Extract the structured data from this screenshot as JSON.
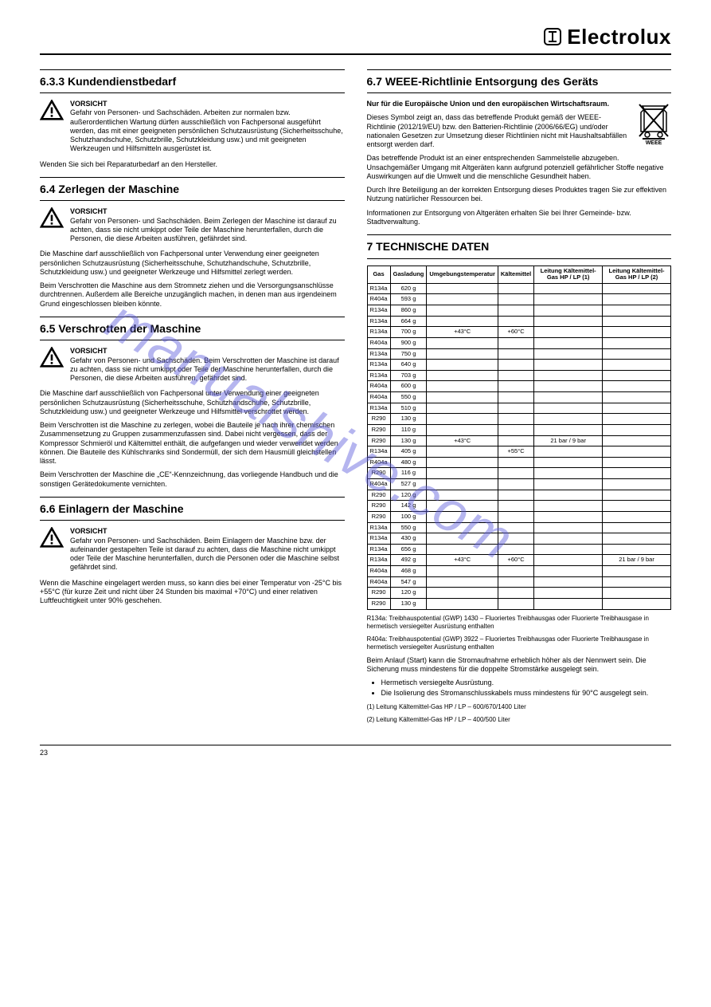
{
  "brand": "Electrolux",
  "watermark": "manualshive.com",
  "footer": "23",
  "sections": {
    "needs": {
      "title": "6.3.3 Kundendienstbedarf",
      "warn_intro": "VORSICHT",
      "warn_body": "Gefahr von Personen- und Sachschäden. Arbeiten zur normalen bzw. außerordentlichen Wartung dürfen ausschließlich von Fachpersonal ausgeführt werden, das mit einer geeigneten persönlichen Schutzausrüstung (Sicherheitsschuhe, Schutzhandschuhe, Schutzbrille, Schutzkleidung usw.) und mit geeigneten Werkzeugen und Hilfsmitteln ausgerüstet ist.",
      "body": "Wenden Sie sich bei Reparaturbedarf an den Hersteller."
    },
    "dismantle": {
      "title": "6.4 Zerlegen der Maschine",
      "warn_intro": "VORSICHT",
      "warn_body": "Gefahr von Personen- und Sachschäden. Beim Zerlegen der Maschine ist darauf zu achten, dass sie nicht umkippt oder Teile der Maschine herunterfallen, durch die Personen, die diese Arbeiten ausführen, gefährdet sind.",
      "body1": "Die Maschine darf ausschließlich von Fachpersonal unter Verwendung einer geeigneten persönlichen Schutzausrüstung (Sicherheitsschuhe, Schutzhandschuhe, Schutzbrille, Schutzkleidung usw.) und geeigneter Werkzeuge und Hilfsmittel zerlegt werden.",
      "body2": "Beim Verschrotten die Maschine aus dem Stromnetz ziehen und die Versorgungsanschlüsse durchtrennen. Außerdem alle Bereiche unzugänglich machen, in denen man aus irgendeinem Grund eingeschlossen bleiben könnte."
    },
    "scrap": {
      "title": "6.5 Verschrotten der Maschine",
      "warn_intro": "VORSICHT",
      "warn_body": "Gefahr von Personen- und Sachschäden. Beim Verschrotten der Maschine ist darauf zu achten, dass sie nicht umkippt oder Teile der Maschine herunterfallen, durch die Personen, die diese Arbeiten ausführen, gefährdet sind.",
      "body1": "Die Maschine darf ausschließlich von Fachpersonal unter Verwendung einer geeigneten persönlichen Schutzausrüstung (Sicherheitsschuhe, Schutzhandschuhe, Schutzbrille, Schutzkleidung usw.) und geeigneter Werkzeuge und Hilfsmittel verschrottet werden.",
      "body2": "Beim Verschrotten ist die Maschine zu zerlegen, wobei die Bauteile je nach ihrer chemischen Zusammensetzung zu Gruppen zusammenzufassen sind. Dabei nicht vergessen, dass der Kompressor Schmieröl und Kältemittel enthält, die aufgefangen und wieder verwendet werden können. Die Bauteile des Kühlschranks sind Sondermüll, der sich dem Hausmüll gleichstellen lässt.",
      "body3": "Beim Verschrotten der Maschine die „CE“-Kennzeichnung, das vorliegende Handbuch und die sonstigen Gerätedokumente vernichten."
    },
    "storage": {
      "title": "6.6 Einlagern der Maschine",
      "warn_intro": "VORSICHT",
      "warn_body": "Gefahr von Personen- und Sachschäden. Beim Einlagern der Maschine bzw. der aufeinander gestapelten Teile ist darauf zu achten, dass die Maschine nicht umkippt oder Teile der Maschine herunterfallen, durch die Personen oder die Maschine selbst gefährdet sind.",
      "body1": "Wenn die Maschine eingelagert werden muss, so kann dies bei einer Temperatur von -25°C bis +55°C (für kurze Zeit und nicht über 24 Stunden bis maximal +70°C) und einer relativen Luftfeuchtigkeit unter 90% geschehen."
    },
    "disposal": {
      "title": "6.7 WEEE-Richtlinie Entsorgung des Geräts",
      "intro_bold": "Nur für die Europäische Union und den europäischen Wirtschaftsraum.",
      "weee_label": "WEEE",
      "body1": "Dieses Symbol zeigt an, dass das betreffende Produkt gemäß der WEEE-Richtlinie (2012/19/EU) bzw. den Batterien-Richtlinie (2006/66/EG) und/oder nationalen Gesetzen zur Umsetzung dieser Richtlinien nicht mit Haushaltsabfällen entsorgt werden darf.",
      "body2": "Das betreffende Produkt ist an einer entsprechenden Sammelstelle abzugeben. Unsachgemäßer Umgang mit Altgeräten kann aufgrund potenziell gefährlicher Stoffe negative Auswirkungen auf die Umwelt und die menschliche Gesundheit haben.",
      "body3": "Durch Ihre Beteiligung an der korrekten Entsorgung dieses Produktes tragen Sie zur effektiven Nutzung natürlicher Ressourcen bei.",
      "body4": "Informationen zur Entsorgung von Altgeräten erhalten Sie bei Ihrer Gemeinde- bzw. Stadtverwaltung."
    },
    "data": {
      "title": "7 TECHNISCHE DATEN",
      "header_gas": "Gas",
      "header_charge": "Gasladung",
      "header_ambient": "Umgebungstemperatur",
      "header_refrigerant": "Kältemittel",
      "header_line1": "Leitung Kältemittel-Gas HP / LP (1)",
      "header_line2": "Leitung Kältemittel-Gas HP / LP (2)",
      "rows": [
        {
          "gas": "R134a",
          "charge": "620 g",
          "ambient": "",
          "ref": "",
          "l1": "",
          "l2": ""
        },
        {
          "gas": "R404a",
          "charge": "593 g",
          "ambient": "",
          "ref": "",
          "l1": "",
          "l2": ""
        },
        {
          "gas": "R134a",
          "charge": "860 g",
          "ambient": "",
          "ref": "",
          "l1": "",
          "l2": ""
        },
        {
          "gas": "R134a",
          "charge": "664 g",
          "ambient": "",
          "ref": "",
          "l1": "",
          "l2": ""
        },
        {
          "gas": "R134a",
          "charge": "700 g",
          "ambient": "+43°C",
          "ref": "+60°C",
          "l1": "",
          "l2": ""
        },
        {
          "gas": "R404a",
          "charge": "900 g",
          "ambient": "",
          "ref": "",
          "l1": "",
          "l2": ""
        },
        {
          "gas": "R134a",
          "charge": "750 g",
          "ambient": "",
          "ref": "",
          "l1": "",
          "l2": ""
        },
        {
          "gas": "R134a",
          "charge": "640 g",
          "ambient": "",
          "ref": "",
          "l1": "",
          "l2": ""
        },
        {
          "gas": "R134a",
          "charge": "703 g",
          "ambient": "",
          "ref": "",
          "l1": "",
          "l2": ""
        },
        {
          "gas": "R404a",
          "charge": "600 g",
          "ambient": "",
          "ref": "",
          "l1": "",
          "l2": ""
        },
        {
          "gas": "R404a",
          "charge": "550 g",
          "ambient": "",
          "ref": "",
          "l1": "",
          "l2": ""
        },
        {
          "gas": "R134a",
          "charge": "510 g",
          "ambient": "",
          "ref": "",
          "l1": "",
          "l2": ""
        },
        {
          "gas": "R290",
          "charge": "130 g",
          "ambient": "",
          "ref": "",
          "l1": "",
          "l2": ""
        },
        {
          "gas": "R290",
          "charge": "110 g",
          "ambient": "",
          "ref": "",
          "l1": "",
          "l2": ""
        },
        {
          "gas": "R290",
          "charge": "130 g",
          "ambient": "+43°C",
          "ref": "",
          "l1": "21 bar / 9 bar",
          "l2": ""
        },
        {
          "gas": "R134a",
          "charge": "405 g",
          "ambient": "",
          "ref": "+55°C",
          "l1": "",
          "l2": ""
        },
        {
          "gas": "R404a",
          "charge": "480 g",
          "ambient": "",
          "ref": "",
          "l1": "",
          "l2": ""
        },
        {
          "gas": "R290",
          "charge": "116 g",
          "ambient": "",
          "ref": "",
          "l1": "",
          "l2": ""
        },
        {
          "gas": "R404a",
          "charge": "527 g",
          "ambient": "",
          "ref": "",
          "l1": "",
          "l2": ""
        },
        {
          "gas": "R290",
          "charge": "120 g",
          "ambient": "",
          "ref": "",
          "l1": "",
          "l2": ""
        },
        {
          "gas": "R290",
          "charge": "142 g",
          "ambient": "",
          "ref": "",
          "l1": "",
          "l2": ""
        },
        {
          "gas": "R290",
          "charge": "100 g",
          "ambient": "",
          "ref": "",
          "l1": "",
          "l2": ""
        },
        {
          "gas": "R134a",
          "charge": "550 g",
          "ambient": "",
          "ref": "",
          "l1": "",
          "l2": ""
        },
        {
          "gas": "R134a",
          "charge": "430 g",
          "ambient": "",
          "ref": "",
          "l1": "",
          "l2": ""
        },
        {
          "gas": "R134a",
          "charge": "656 g",
          "ambient": "",
          "ref": "",
          "l1": "",
          "l2": ""
        },
        {
          "gas": "R134a",
          "charge": "492 g",
          "ambient": "+43°C",
          "ref": "+60°C",
          "l1": "",
          "l2": "21 bar / 9 bar"
        },
        {
          "gas": "R404a",
          "charge": "468 g",
          "ambient": "",
          "ref": "",
          "l1": "",
          "l2": ""
        },
        {
          "gas": "R404a",
          "charge": "547 g",
          "ambient": "",
          "ref": "",
          "l1": "",
          "l2": ""
        },
        {
          "gas": "R290",
          "charge": "120 g",
          "ambient": "",
          "ref": "",
          "l1": "",
          "l2": ""
        },
        {
          "gas": "R290",
          "charge": "130 g",
          "ambient": "",
          "ref": "",
          "l1": "",
          "l2": ""
        }
      ],
      "note_r134a": "R134a: Treibhauspotential (GWP) 1430 – Fluoriertes Treibhausgas oder Fluorierte Treibhausgase in hermetisch versiegelter Ausrüstung enthalten",
      "note_r404a": "R404a: Treibhauspotential (GWP) 3922 – Fluoriertes Treibhausgas oder Fluorierte Treibhausgase in hermetisch versiegelter Ausrüstung enthalten",
      "main_note": "Beim Anlauf (Start) kann die Stromaufnahme erheblich höher als der Nennwert sein. Die Sicherung muss mindestens für die doppelte Stromstärke ausgelegt sein.",
      "bullets": [
        "Hermetisch versiegelte Ausrüstung.",
        "Die Isolierung des Stromanschlusskabels muss mindestens für 90°C ausgelegt sein."
      ],
      "line1": "(1) Leitung Kältemittel-Gas HP / LP – 600/670/1400 Liter",
      "line2": "(2) Leitung Kältemittel-Gas HP / LP – 400/500 Liter"
    }
  }
}
